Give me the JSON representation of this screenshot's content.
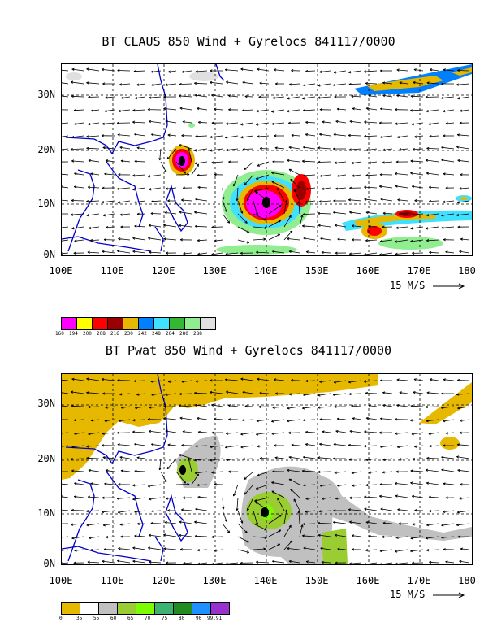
{
  "maps": [
    {
      "title": "BT CLAUS 850 Wind + Gyrelocs 841117/0000",
      "lat_labels": [
        "30N",
        "20N",
        "10N",
        "0N"
      ],
      "lon_labels": [
        "100E",
        "110E",
        "120E",
        "130E",
        "140E",
        "150E",
        "160E",
        "170E",
        "180"
      ],
      "wind_scale_label": "15 M/S",
      "legend_colors": [
        "#ff00ff",
        "#ffff00",
        "#ff0000",
        "#9b0000",
        "#e6b800",
        "#0080ff",
        "#40e0ff",
        "#33b833",
        "#90ee90",
        "#e0e0e0"
      ],
      "legend_values": [
        "160",
        "194",
        "200",
        "208",
        "216",
        "230",
        "242",
        "248",
        "264",
        "280",
        "288"
      ]
    },
    {
      "title": "BT Pwat 850 Wind + Gyrelocs 841117/0000",
      "lat_labels": [
        "30N",
        "20N",
        "10N",
        "0N"
      ],
      "lon_labels": [
        "100E",
        "110E",
        "120E",
        "130E",
        "140E",
        "150E",
        "160E",
        "170E",
        "180"
      ],
      "wind_scale_label": "15 M/S",
      "legend_colors": [
        "#e6b800",
        "#ffffff",
        "#c0c0c0",
        "#9acd32",
        "#7cfc00",
        "#3cb371",
        "#228b22",
        "#1e90ff",
        "#9932cc"
      ],
      "legend_values": [
        "0",
        "35",
        "55",
        "60",
        "65",
        "70",
        "75",
        "80",
        "90",
        "99.91"
      ]
    }
  ]
}
